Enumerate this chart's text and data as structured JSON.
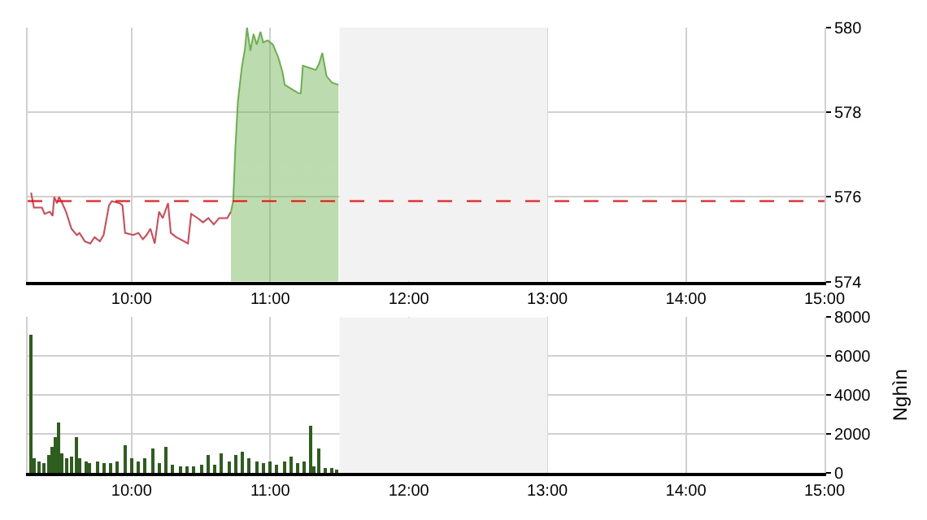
{
  "chart_data": [
    {
      "type": "line",
      "xlim": [
        9.25,
        15
      ],
      "ylim": [
        574,
        580
      ],
      "xticks": [
        {
          "value": 10,
          "label": "10:00"
        },
        {
          "value": 11,
          "label": "11:00"
        },
        {
          "value": 12,
          "label": "12:00"
        },
        {
          "value": 13,
          "label": "13:00"
        },
        {
          "value": 14,
          "label": "14:00"
        },
        {
          "value": 15,
          "label": "15:00"
        }
      ],
      "yticks": [
        574,
        576,
        578,
        580
      ],
      "grid": true,
      "series": [
        {
          "type": "line",
          "color": "#d9434f",
          "x": [
            9.275,
            9.295,
            9.353,
            9.372,
            9.411,
            9.43,
            9.442,
            9.461,
            9.477,
            9.5,
            9.527,
            9.566,
            9.605,
            9.624,
            9.663,
            9.702,
            9.733,
            9.771,
            9.798,
            9.837,
            9.857,
            9.915,
            9.934,
            9.953,
            10.012,
            10.05,
            10.081,
            10.108,
            10.136,
            10.167,
            10.198,
            10.225,
            10.263,
            10.283,
            10.322,
            10.38,
            10.407,
            10.43,
            10.477,
            10.515,
            10.554,
            10.593,
            10.632,
            10.69,
            10.717
          ],
          "values": [
            576.1,
            575.75,
            575.75,
            575.6,
            575.65,
            575.55,
            576.0,
            575.85,
            576.0,
            575.85,
            575.65,
            575.25,
            575.1,
            575.15,
            574.95,
            574.9,
            575.05,
            574.95,
            575.1,
            575.8,
            575.9,
            575.85,
            575.8,
            575.15,
            575.1,
            575.15,
            575.0,
            575.1,
            575.25,
            574.9,
            575.65,
            575.5,
            575.85,
            575.15,
            575.05,
            574.95,
            574.9,
            575.6,
            575.5,
            575.4,
            575.5,
            575.35,
            575.5,
            575.5,
            575.65
          ]
        },
        {
          "type": "area",
          "color": "#6ab04c",
          "x": [
            10.717,
            10.733,
            10.748,
            10.767,
            10.795,
            10.818,
            10.833,
            10.857,
            10.88,
            10.903,
            10.93,
            10.95,
            10.981,
            11.02,
            11.058,
            11.089,
            11.105,
            11.155,
            11.205,
            11.221,
            11.236,
            11.283,
            11.329,
            11.353,
            11.376,
            11.407,
            11.446,
            11.493
          ],
          "values": [
            575.65,
            575.9,
            577.1,
            578.25,
            579.05,
            579.5,
            580.0,
            579.45,
            579.85,
            579.6,
            579.9,
            579.65,
            579.7,
            579.6,
            579.3,
            578.95,
            578.65,
            578.55,
            578.45,
            578.45,
            579.1,
            579.05,
            579.0,
            579.15,
            579.4,
            578.85,
            578.7,
            578.65
          ]
        }
      ],
      "ref_lines": [
        {
          "axis": "y",
          "value": 575.9,
          "color": "#ff0000",
          "line_style": "dashed"
        }
      ],
      "bands": [
        {
          "axis": "x",
          "from": 11.5,
          "to": 13,
          "color": "#f2f2f2"
        }
      ]
    },
    {
      "type": "bar",
      "ylabel": "Nghìn",
      "xlim": [
        9.25,
        15
      ],
      "ylim": [
        0,
        8000
      ],
      "xticks": [
        {
          "value": 10,
          "label": "10:00"
        },
        {
          "value": 11,
          "label": "11:00"
        },
        {
          "value": 12,
          "label": "12:00"
        },
        {
          "value": 13,
          "label": "13:00"
        },
        {
          "value": 14,
          "label": "14:00"
        },
        {
          "value": 15,
          "label": "15:00"
        }
      ],
      "yticks": [
        0,
        2000,
        4000,
        6000,
        8000
      ],
      "grid": true,
      "color": "#2e5e1e",
      "x": [
        9.27,
        9.3,
        9.33,
        9.37,
        9.4,
        9.43,
        9.45,
        9.47,
        9.5,
        9.53,
        9.57,
        9.6,
        9.63,
        9.67,
        9.7,
        9.75,
        9.8,
        9.85,
        9.9,
        9.95,
        10.0,
        10.05,
        10.1,
        10.15,
        10.2,
        10.25,
        10.3,
        10.35,
        10.4,
        10.45,
        10.5,
        10.55,
        10.6,
        10.65,
        10.7,
        10.75,
        10.8,
        10.85,
        10.9,
        10.95,
        11.0,
        11.05,
        11.1,
        11.15,
        11.2,
        11.25,
        11.29,
        11.31,
        11.35,
        11.4,
        11.44,
        11.48
      ],
      "values": [
        7100,
        700,
        600,
        500,
        900,
        1300,
        1800,
        2600,
        1000,
        700,
        800,
        1800,
        700,
        600,
        500,
        600,
        500,
        500,
        600,
        1400,
        700,
        600,
        700,
        1200,
        500,
        1300,
        400,
        300,
        300,
        300,
        400,
        900,
        400,
        1000,
        600,
        900,
        1100,
        700,
        600,
        500,
        600,
        400,
        600,
        800,
        500,
        600,
        2400,
        300,
        1200,
        200,
        200,
        100
      ],
      "bands": [
        {
          "axis": "x",
          "from": 11.5,
          "to": 13,
          "color": "#f2f2f2"
        }
      ]
    }
  ]
}
